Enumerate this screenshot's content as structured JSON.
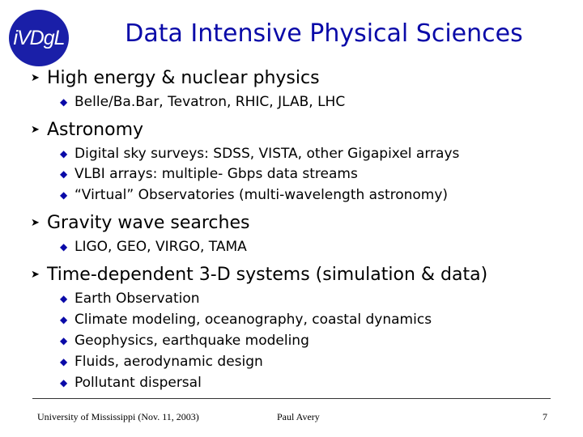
{
  "logo": {
    "text": "iVDgL"
  },
  "title": "Data Intensive Physical Sciences",
  "bullets": [
    {
      "text": "High energy & nuclear physics",
      "sub": [
        "Belle/Ba.Bar, Tevatron, RHIC, JLAB, LHC"
      ]
    },
    {
      "text": "Astronomy",
      "sub": [
        "Digital sky surveys: SDSS, VISTA, other Gigapixel arrays",
        "VLBI arrays: multiple- Gbps data streams",
        "“Virtual” Observatories (multi-wavelength astronomy)"
      ]
    },
    {
      "text": "Gravity wave searches",
      "sub": [
        "LIGO, GEO, VIRGO, TAMA"
      ]
    },
    {
      "text": "Time-dependent 3-D systems (simulation & data)",
      "sub": [
        "Earth Observation",
        "Climate modeling, oceanography, coastal dynamics",
        "Geophysics, earthquake modeling",
        "Fluids, aerodynamic design",
        "Pollutant dispersal"
      ]
    }
  ],
  "icons": {
    "level1": "arrowhead-bullet-icon",
    "level2": "diamond-bullet-icon"
  },
  "footer": {
    "left": "University of Mississippi (Nov. 11, 2003)",
    "center": "Paul Avery",
    "page_number": "7"
  }
}
